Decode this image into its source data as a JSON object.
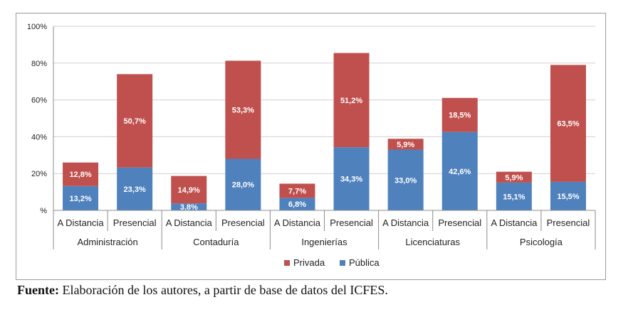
{
  "chart_data": {
    "type": "bar",
    "stacked": true,
    "y_tick_labels": [
      "%",
      "20%",
      "40%",
      "60%",
      "80%",
      "100%"
    ],
    "ylim": [
      0,
      100
    ],
    "groups": [
      "Administración",
      "Contaduría",
      "Ingenierías",
      "Licenciaturas",
      "Psicología"
    ],
    "subcategories": [
      "A Distancia",
      "Presencial",
      "A Distancia",
      "Presencial",
      "A Distancia",
      "Presencial",
      "A Distancia",
      "Presencial",
      "A Distancia",
      "Presencial"
    ],
    "series": [
      {
        "name": "Pública",
        "color": "#4f81bd",
        "values": [
          13.2,
          23.3,
          3.8,
          28.0,
          6.8,
          34.3,
          33.0,
          42.6,
          15.1,
          15.5
        ],
        "labels": [
          "13,2%",
          "23,3%",
          "3,8%",
          "28,0%",
          "6,8%",
          "34,3%",
          "33,0%",
          "42,6%",
          "15,1%",
          "15,5%"
        ]
      },
      {
        "name": "Privada",
        "color": "#c0504d",
        "values": [
          12.8,
          50.7,
          14.9,
          53.3,
          7.7,
          51.2,
          5.9,
          18.5,
          5.9,
          63.5
        ],
        "labels": [
          "12,8%",
          "50,7%",
          "14,9%",
          "53,3%",
          "7,7%",
          "51,2%",
          "5,9%",
          "18,5%",
          "5,9%",
          "63,5%"
        ]
      }
    ],
    "legend": [
      "Privada",
      "Pública"
    ],
    "legend_position": "bottom",
    "grid": true
  },
  "source": {
    "label": "Fuente:",
    "text": " Elaboración de los autores, a partir de base de datos del ICFES."
  }
}
